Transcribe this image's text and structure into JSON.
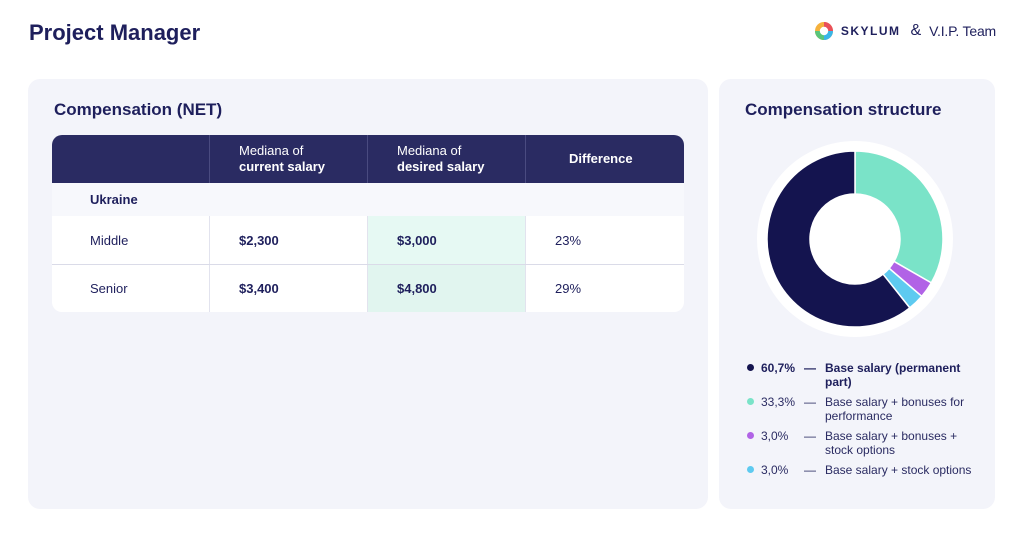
{
  "header": {
    "title": "Project Manager",
    "brand_skylum": "SKYLUM",
    "ampersand": "&",
    "brand_vip": "V.I.P. Team"
  },
  "compensation_table": {
    "title": "Compensation (NET)",
    "columns": [
      {
        "light": "",
        "strong": ""
      },
      {
        "light": "Mediana of",
        "strong": "current salary"
      },
      {
        "light": "Mediana of",
        "strong": "desired salary"
      },
      {
        "light": "",
        "strong": "Difference"
      }
    ],
    "region": "Ukraine",
    "rows": [
      {
        "level": "Middle",
        "current": "$2,300",
        "desired": "$3,000",
        "difference": "23%"
      },
      {
        "level": "Senior",
        "current": "$3,400",
        "desired": "$4,800",
        "difference": "29%"
      }
    ]
  },
  "structure": {
    "title": "Compensation structure",
    "colors": [
      "#14144f",
      "#7ae3c8",
      "#b163e6",
      "#5ecaf0"
    ],
    "legend": [
      {
        "pct": "60,7%",
        "dash": "—",
        "label": "Base salary (permanent part)"
      },
      {
        "pct": "33,3%",
        "dash": "—",
        "label": "Base salary + bonuses for performance"
      },
      {
        "pct": "3,0%",
        "dash": "—",
        "label": "Base salary + bonuses + stock options"
      },
      {
        "pct": "3,0%",
        "dash": "—",
        "label": "Base salary + stock options"
      }
    ]
  },
  "chart_data": {
    "type": "pie",
    "title": "Compensation structure",
    "categories": [
      "Base salary (permanent part)",
      "Base salary + bonuses for performance",
      "Base salary + bonuses + stock options",
      "Base salary + stock options"
    ],
    "values": [
      60.7,
      33.3,
      3.0,
      3.0
    ],
    "donut": true
  }
}
